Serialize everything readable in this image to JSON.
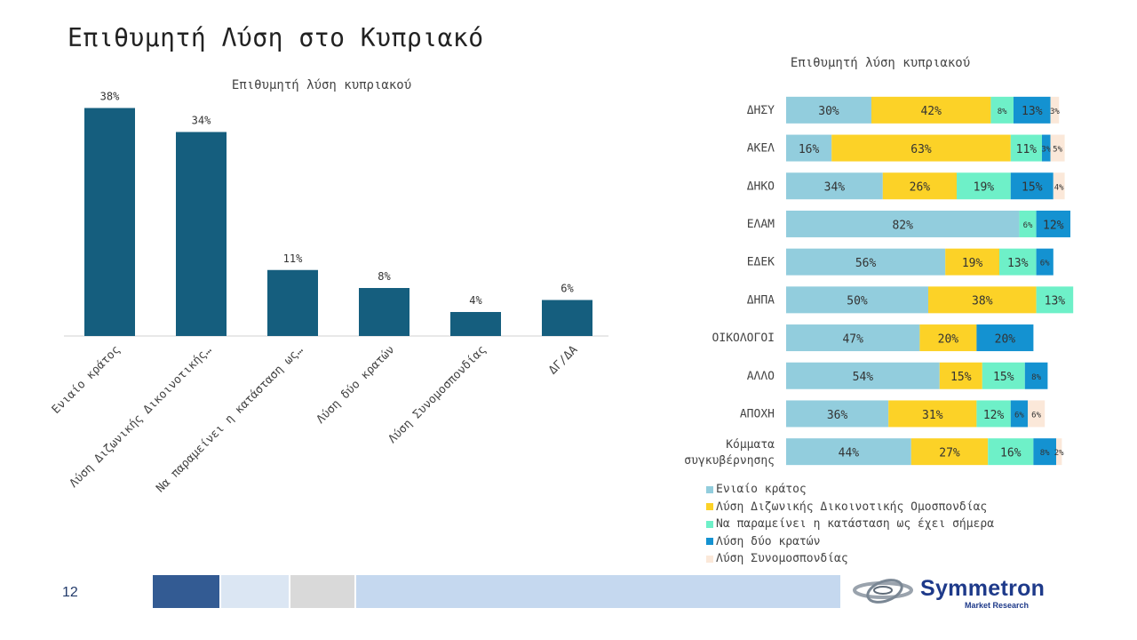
{
  "page": {
    "title": "Επιθυμητή Λύση στο Κυπριακό",
    "page_number": "12"
  },
  "brand": {
    "name": "Symmetron",
    "tagline": "Market Research",
    "color": "#1e3a8a"
  },
  "chart_data": [
    {
      "type": "bar",
      "title": "Επιθυμητή λύση κυπριακού",
      "categories": [
        "Ενιαίο κράτος",
        "Λύση Διζωνικής Δικοινοτικής…",
        "Να παραμείνει η κατάσταση ως…",
        "Λύση δύο κρατών",
        "Λύση Συνομοσπονδίας",
        "ΔΓ/ΔΑ"
      ],
      "values": [
        38,
        34,
        11,
        8,
        4,
        6
      ],
      "value_labels": [
        "38%",
        "34%",
        "11%",
        "8%",
        "4%",
        "6%"
      ],
      "ylim": [
        0,
        40
      ],
      "color": "#155e7e",
      "grid": false
    },
    {
      "type": "bar",
      "orientation": "horizontal",
      "stacked": true,
      "title": "Επιθυμητή λύση κυπριακού",
      "categories": [
        "ΔΗΣΥ",
        "ΑΚΕΛ",
        "ΔΗΚΟ",
        "ΕΛΑΜ",
        "ΕΔΕΚ",
        "ΔΗΠΑ",
        "ΟΙΚΟΛΟΓΟΙ",
        "ΑΛΛΟ",
        "ΑΠΟΧΗ",
        "Κόμματα συγκυβέρνησης"
      ],
      "series": [
        {
          "name": "Ενιαίο κράτος",
          "color": "#92cddd",
          "values": [
            30,
            16,
            34,
            82,
            56,
            50,
            47,
            54,
            36,
            44
          ]
        },
        {
          "name": "Λύση Διζωνικής Δικοινοτικής Ομοσπονδίας",
          "color": "#fcd227",
          "values": [
            42,
            63,
            26,
            0,
            19,
            38,
            20,
            15,
            31,
            27
          ]
        },
        {
          "name": "Να παραμείνει η κατάσταση ως έχει σήμερα",
          "color": "#6ef0c8",
          "values": [
            8,
            11,
            19,
            6,
            13,
            13,
            0,
            15,
            12,
            16
          ]
        },
        {
          "name": "Λύση δύο κρατών",
          "color": "#1492d1",
          "values": [
            13,
            3,
            15,
            12,
            6,
            0,
            20,
            8,
            6,
            8
          ]
        },
        {
          "name": "Λύση Συνομοσπονδίας",
          "color": "#fbe8d9",
          "values": [
            3,
            5,
            4,
            0,
            0,
            0,
            0,
            0,
            6,
            2
          ]
        }
      ],
      "legend": "bottom",
      "grid": false
    }
  ]
}
